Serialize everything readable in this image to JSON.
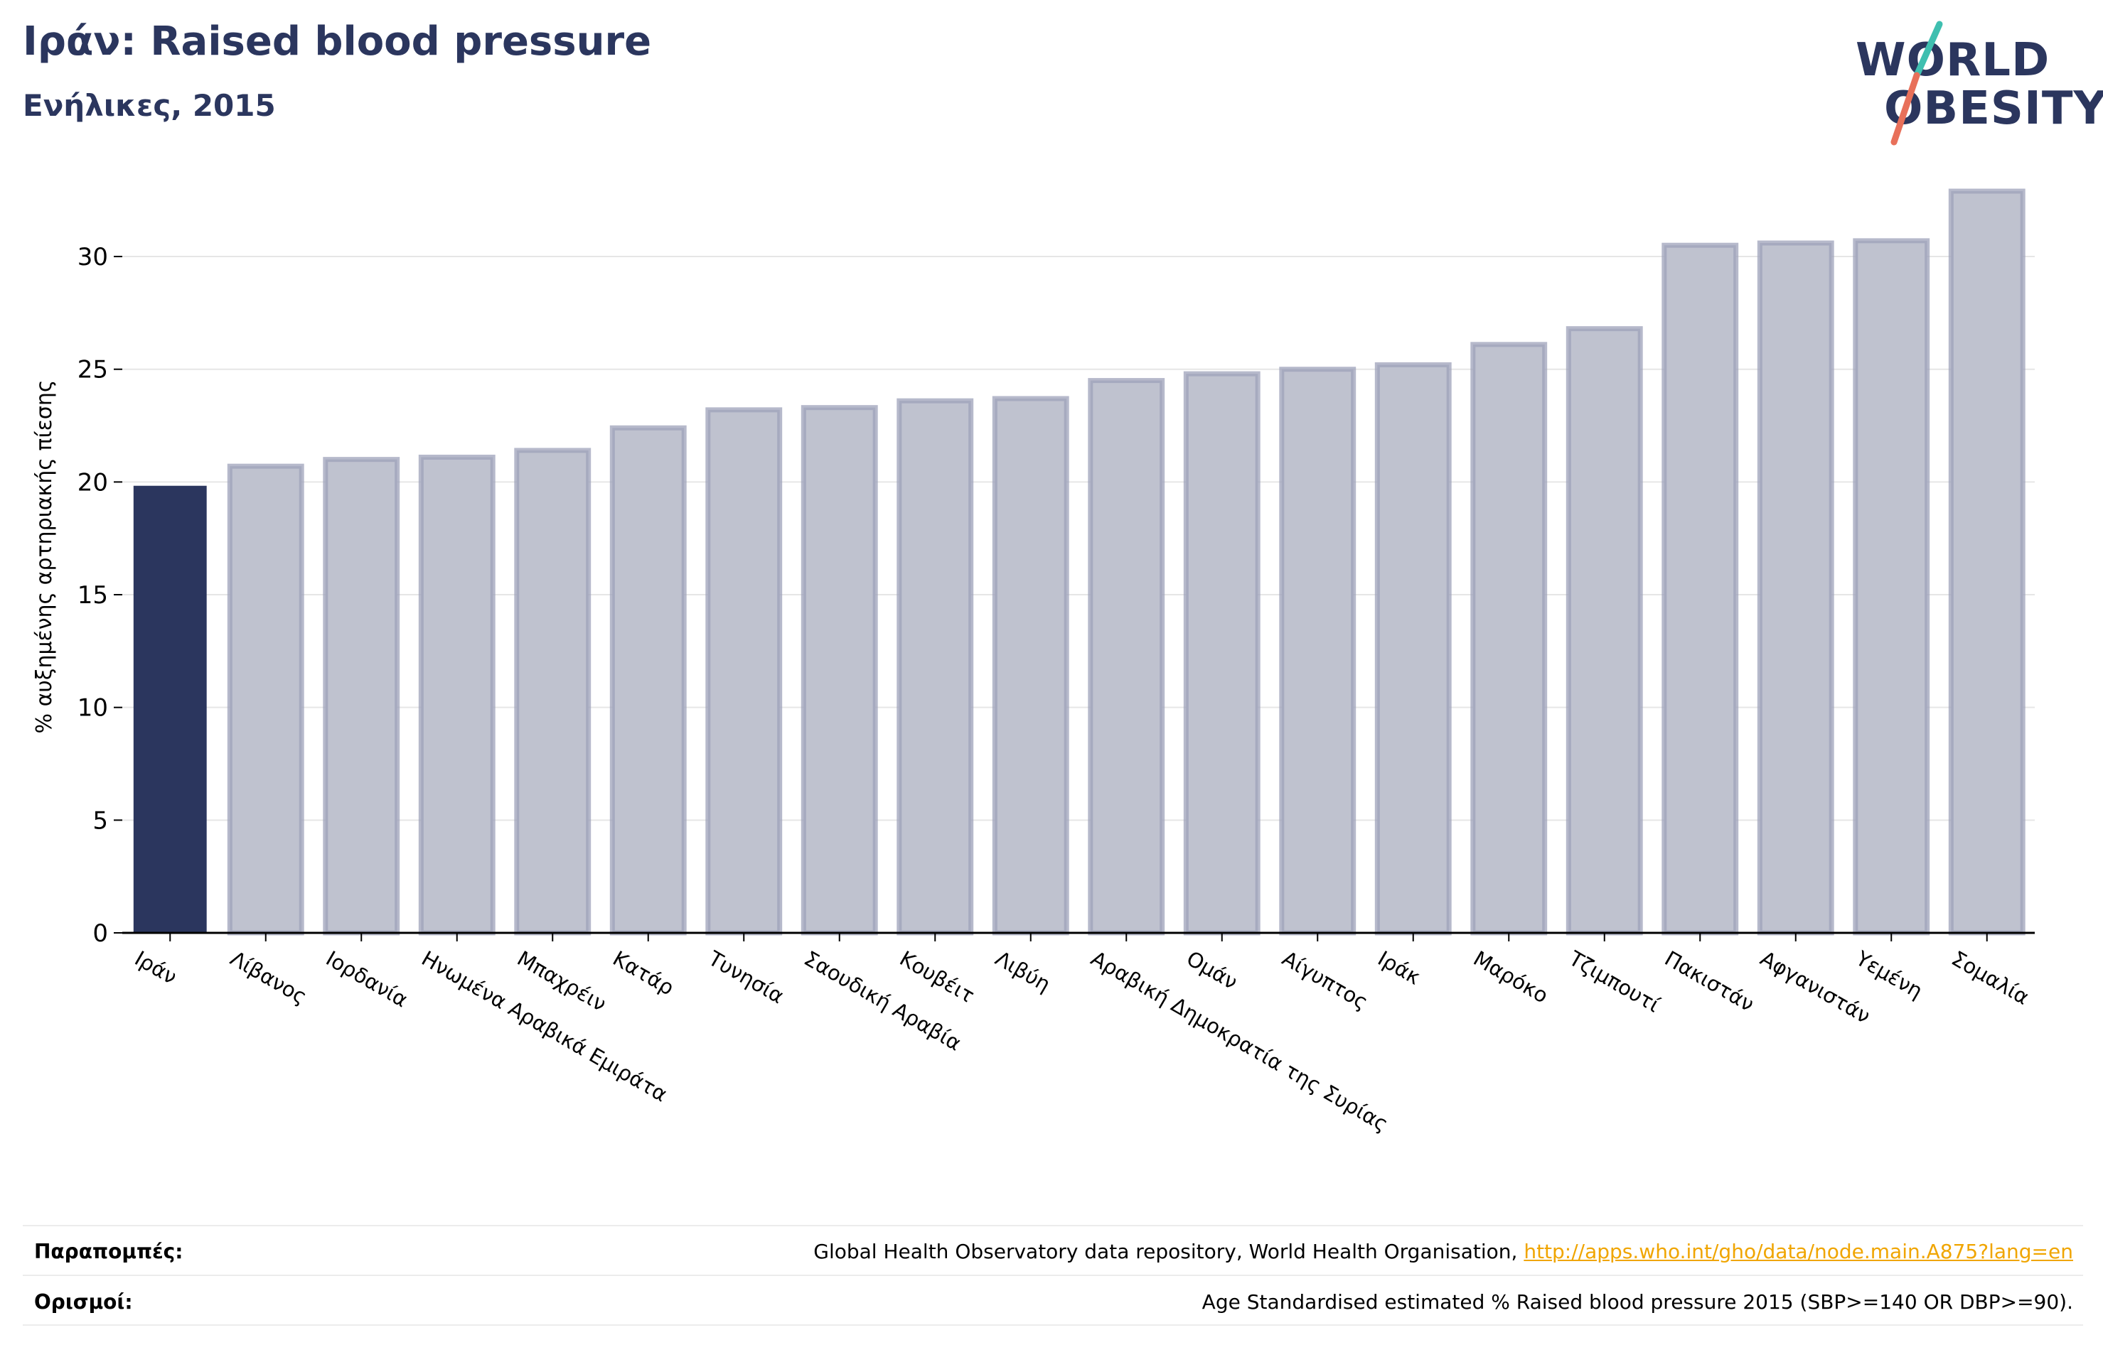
{
  "header": {
    "title": "Ιράν: Raised blood pressure",
    "subtitle": "Ενήλικες, 2015"
  },
  "logo": {
    "line1": "WORLD",
    "line2": "OBESITY",
    "slash_colors": [
      "#3fbfb0",
      "#e8705a"
    ],
    "text_color": "#2b365e"
  },
  "colors": {
    "highlight_bar": "#2b365e",
    "other_bar_fill": "#bfc2cf",
    "other_bar_stroke": "#9da2b9",
    "grid": "#e6e6e6",
    "axis": "#000000"
  },
  "chart_data": {
    "type": "bar",
    "ylabel": "% αυξημένης αρτηριακής πίεσης",
    "ylim": [
      0,
      33.5
    ],
    "yticks": [
      0,
      5,
      10,
      15,
      20,
      25,
      30
    ],
    "grid": true,
    "highlight": "Ιράν",
    "categories": [
      "Ιράν",
      "Λίβανος",
      "Ιορδανία",
      "Ηνωμένα Αραβικά Εμιράτα",
      "Μπαχρέιν",
      "Κατάρ",
      "Τυνησία",
      "Σαουδική Αραβία",
      "Κουβέιτ",
      "Λιβύη",
      "Αραβική Δημοκρατία της Συρίας",
      "Ομάν",
      "Αίγυπτος",
      "Ιράκ",
      "Μαρόκο",
      "Τζιμπουτί",
      "Πακιστάν",
      "Αφγανιστάν",
      "Υεμένη",
      "Σομαλία"
    ],
    "values": [
      19.8,
      20.7,
      21.0,
      21.1,
      21.4,
      22.4,
      23.2,
      23.3,
      23.6,
      23.7,
      24.5,
      24.8,
      25.0,
      25.2,
      26.1,
      26.8,
      30.5,
      30.6,
      30.7,
      32.9
    ]
  },
  "footer": {
    "references_label": "Παραπομπές:",
    "references_text": "Global Health Observatory data repository, World Health Organisation, ",
    "references_link": "http://apps.who.int/gho/data/node.main.A875?lang=en",
    "definitions_label": "Ορισμοί:",
    "definitions_text": "Age Standardised estimated % Raised blood pressure 2015 (SBP>=140 OR DBP>=90)."
  }
}
